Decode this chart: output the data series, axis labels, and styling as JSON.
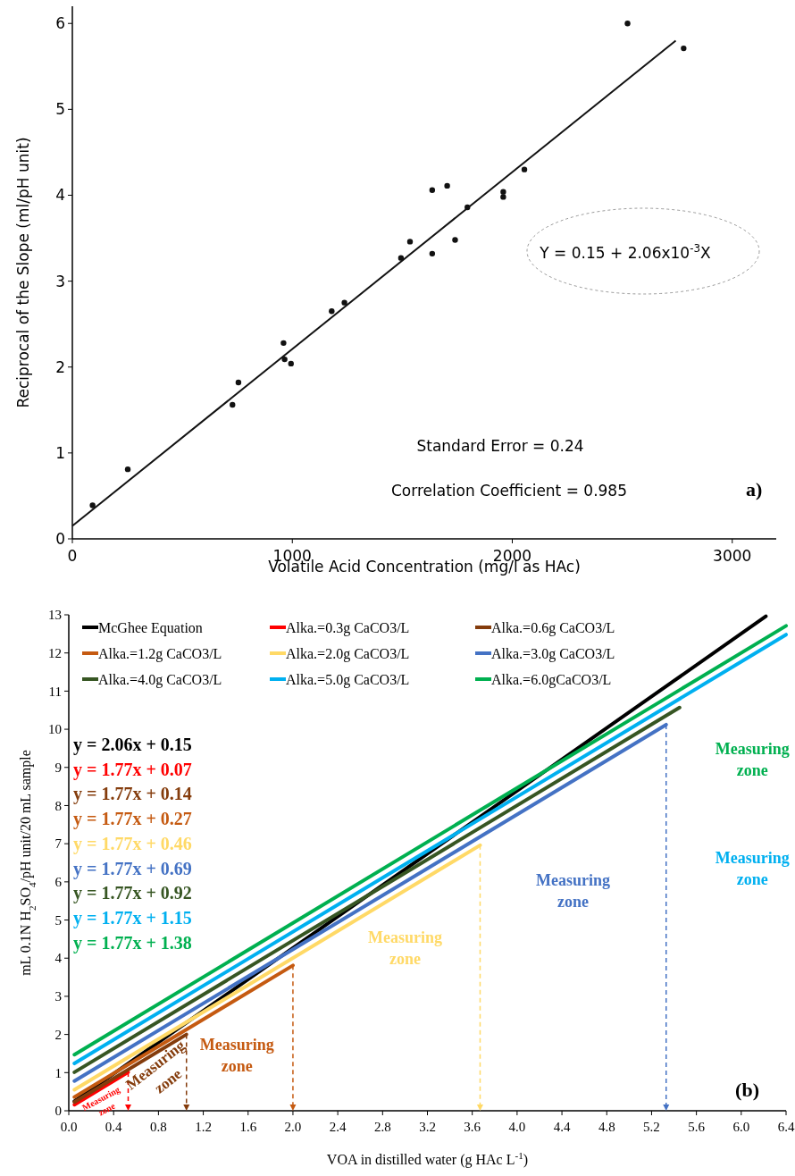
{
  "chart_data": [
    {
      "type": "scatter",
      "xlabel": "Volatile Acid Concentration (mg/l as HAc)",
      "ylabel": "Reciprocal of the Slope (ml/pH unit)",
      "xlim": [
        0,
        3200
      ],
      "ylim": [
        0,
        6.2
      ],
      "xticks": [
        0,
        1000,
        2000,
        3000
      ],
      "yticks": [
        0,
        1,
        2,
        3,
        4,
        5,
        6
      ],
      "grid": false,
      "x": [
        92,
        252,
        728,
        755,
        960,
        965,
        994,
        1179,
        1237,
        1494,
        1535,
        1636,
        1636,
        1704,
        1740,
        1796,
        1959,
        1959,
        2055,
        2524,
        2779
      ],
      "series": [
        {
          "type": "scatter",
          "marker": "circle",
          "color": "#111111",
          "values": [
            0.39,
            0.81,
            1.56,
            1.82,
            2.28,
            2.09,
            2.04,
            2.65,
            2.75,
            3.27,
            3.46,
            4.06,
            3.32,
            4.11,
            3.48,
            3.86,
            4.04,
            3.98,
            4.3,
            6.0,
            5.71
          ]
        },
        {
          "type": "line",
          "color": "#111111",
          "x": [
            0,
            2743
          ],
          "values": [
            0.15,
            5.8
          ]
        }
      ],
      "annotations": [
        "Y = 0.15 + 2.06x10$^{-3}$X",
        "Standard Error = 0.24",
        "Correlation Coefficient = 0.985",
        "a)"
      ]
    },
    {
      "type": "line",
      "xlabel": "VOA in distilled water (g HAc L$^{-1}$)",
      "ylabel": "mL 0.1N H$_{2}$SO$_{4}$/pH unit/20 mL sample",
      "xlim": [
        0,
        6.4
      ],
      "ylim": [
        0,
        13
      ],
      "xticks": [
        {
          "value": 0,
          "label": "0.0"
        },
        {
          "value": 0.4,
          "label": "0.4"
        },
        {
          "value": 0.8,
          "label": "0.8"
        },
        {
          "value": 1.2,
          "label": "1.2"
        },
        {
          "value": 1.6,
          "label": "1.6"
        },
        {
          "value": 2,
          "label": "2.0"
        },
        {
          "value": 2.4,
          "label": "2.4"
        },
        {
          "value": 2.8,
          "label": "2.8"
        },
        {
          "value": 3.2,
          "label": "3.2"
        },
        {
          "value": 3.6,
          "label": "3.6"
        },
        {
          "value": 4,
          "label": "4.0"
        },
        {
          "value": 4.4,
          "label": "4.4"
        },
        {
          "value": 4.8,
          "label": "4.8"
        },
        {
          "value": 5.2,
          "label": "5.2"
        },
        {
          "value": 5.6,
          "label": "5.6"
        },
        {
          "value": 6,
          "label": "6.0"
        },
        {
          "value": 6.4,
          "label": "6.4"
        }
      ],
      "yticks": [
        0,
        1,
        2,
        3,
        4,
        5,
        6,
        7,
        8,
        9,
        10,
        11,
        12,
        13
      ],
      "grid": false,
      "legend": "top",
      "line_style": "solid",
      "series": [
        {
          "name": "McGhee Equation",
          "color": "#000000",
          "x": [
            0.05,
            6.22
          ],
          "values": [
            0.25,
            12.96
          ]
        },
        {
          "name": "Alka.=0.3g CaCO3/L",
          "color": "#ff0000",
          "x": [
            0.05,
            0.53
          ],
          "values": [
            0.16,
            1.01
          ]
        },
        {
          "name": "Alka.=0.6g CaCO3/L",
          "color": "#843c0c",
          "x": [
            0.05,
            1.05
          ],
          "values": [
            0.23,
            2.0
          ]
        },
        {
          "name": "Alka.=1.2g CaCO3/L",
          "color": "#c55a11",
          "x": [
            0.05,
            2.0
          ],
          "values": [
            0.36,
            3.81
          ]
        },
        {
          "name": "Alka.=2.0g CaCO3/L",
          "color": "#ffd966",
          "x": [
            0.05,
            3.67
          ],
          "values": [
            0.55,
            6.96
          ]
        },
        {
          "name": "Alka.=3.0g CaCO3/L",
          "color": "#4472c4",
          "x": [
            0.05,
            5.33
          ],
          "values": [
            0.78,
            10.12
          ]
        },
        {
          "name": "Alka.=4.0g CaCO3/L",
          "color": "#375623",
          "x": [
            0.05,
            5.45
          ],
          "values": [
            1.01,
            10.57
          ]
        },
        {
          "name": "Alka.=5.0g CaCO3/L",
          "color": "#00b0f0",
          "x": [
            0.05,
            6.4
          ],
          "values": [
            1.24,
            12.48
          ]
        },
        {
          "name": "Alka.=6.0gCaCO3/L",
          "color": "#00b050",
          "x": [
            0.05,
            6.4
          ],
          "values": [
            1.47,
            12.71
          ]
        }
      ],
      "annotations": [
        "y = 2.06x + 0.15",
        "y = 1.77x + 0.07",
        "y = 1.77x + 0.14",
        "y = 1.77x + 0.27",
        "y = 1.77x + 0.46",
        "y = 1.77x + 0.69",
        "y = 1.77x + 0.92",
        "y = 1.77x + 1.15",
        "y = 1.77x + 1.38",
        {
          "text": "Measuring zone",
          "x": 0.53,
          "y": 1.01
        },
        {
          "text": "Measuring zone",
          "x": 1.05,
          "y": 2.0
        },
        "Measuring zone",
        "Measuring zone",
        "Measuring zone",
        "Measuring zone",
        "Measuring zone",
        "(b)"
      ]
    }
  ]
}
